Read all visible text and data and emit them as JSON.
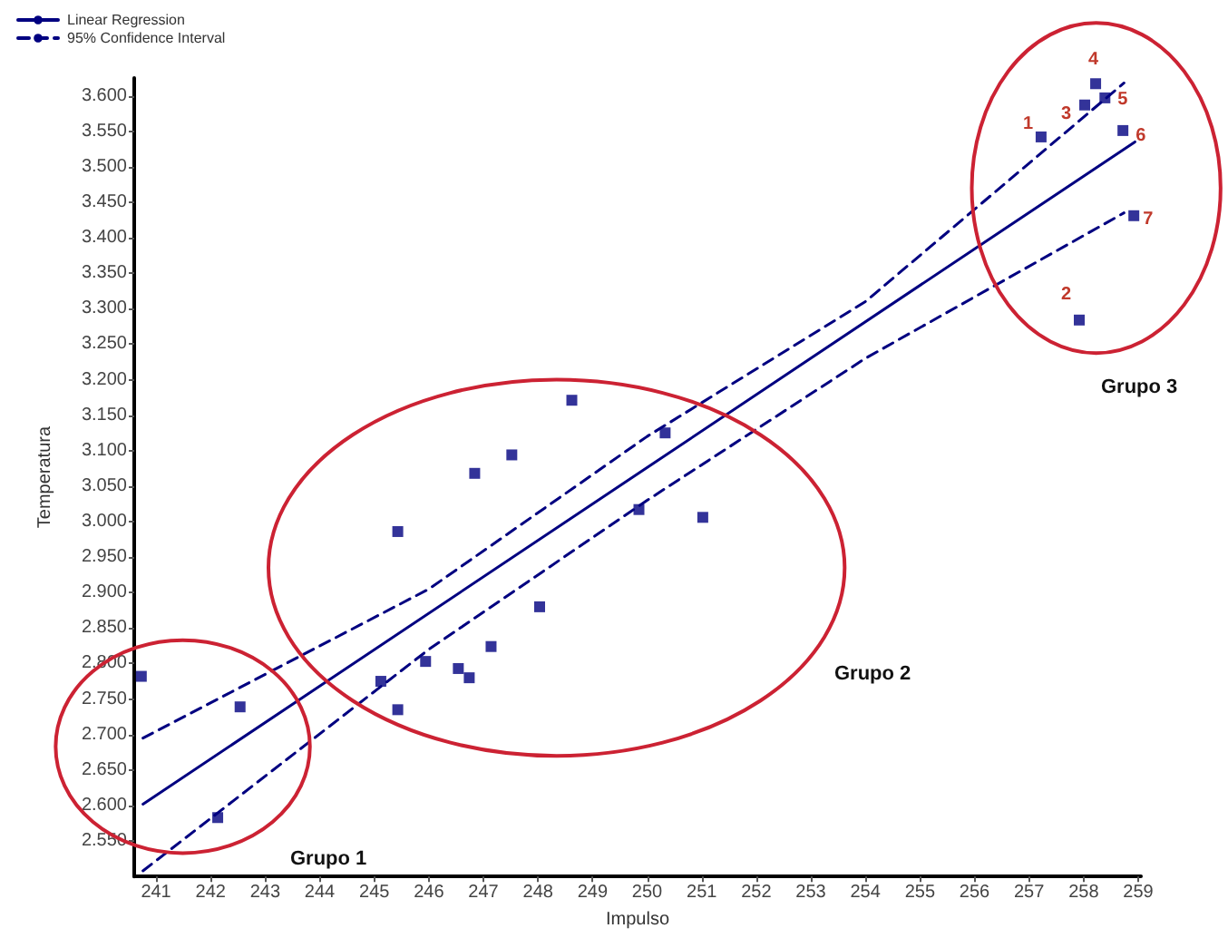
{
  "chart_data": {
    "type": "scatter",
    "xlabel": "Impulso",
    "ylabel": "Temperatura",
    "marker": "square",
    "grid": false,
    "legend": "top left",
    "xlim": [
      240.6,
      259.05
    ],
    "xticks": [
      241,
      242,
      243,
      244,
      245,
      246,
      247,
      248,
      249,
      250,
      251,
      252,
      253,
      254,
      255,
      256,
      257,
      258,
      259
    ],
    "ylim": [
      2.5,
      3.625
    ],
    "yticks": [
      {
        "value": 2.55,
        "label": "2.550"
      },
      {
        "value": 2.6,
        "label": "2.600"
      },
      {
        "value": 2.65,
        "label": "2.650"
      },
      {
        "value": 2.7,
        "label": "2.700"
      },
      {
        "value": 2.75,
        "label": "2.750"
      },
      {
        "value": 2.8,
        "label": "2.800"
      },
      {
        "value": 2.85,
        "label": "2.850"
      },
      {
        "value": 2.9,
        "label": "2.900"
      },
      {
        "value": 2.95,
        "label": "2.950"
      },
      {
        "value": 3.0,
        "label": "3.000"
      },
      {
        "value": 3.05,
        "label": "3.050"
      },
      {
        "value": 3.1,
        "label": "3.100"
      },
      {
        "value": 3.15,
        "label": "3.150"
      },
      {
        "value": 3.2,
        "label": "3.200"
      },
      {
        "value": 3.25,
        "label": "3.250"
      },
      {
        "value": 3.3,
        "label": "3.300"
      },
      {
        "value": 3.35,
        "label": "3.350"
      },
      {
        "value": 3.4,
        "label": "3.400"
      },
      {
        "value": 3.45,
        "label": "3.450"
      },
      {
        "value": 3.5,
        "label": "3.500"
      },
      {
        "value": 3.55,
        "label": "3.550"
      },
      {
        "value": 3.6,
        "label": "3.600"
      }
    ],
    "series": [
      {
        "color": "#000080",
        "x": [
          240.73,
          242.54,
          242.13,
          245.12,
          245.43,
          245.43,
          245.94,
          246.54,
          246.74,
          246.84,
          247.14,
          248.03,
          247.52,
          248.62,
          249.85,
          251.02,
          250.33,
          257.22,
          258.02,
          258.22,
          258.39,
          258.72,
          258.92,
          257.92
        ],
        "values": [
          2.782,
          2.739,
          2.583,
          2.775,
          2.735,
          2.986,
          2.803,
          2.793,
          2.78,
          3.068,
          2.824,
          2.88,
          3.094,
          3.171,
          3.017,
          3.006,
          3.125,
          3.542,
          3.587,
          3.617,
          3.597,
          3.551,
          3.431,
          3.284
        ]
      },
      {
        "type": "line",
        "name": "Linear Regression",
        "color": "#000080",
        "marker": "none",
        "line_style": "solid",
        "x": [
          240.76,
          258.94
        ],
        "values": [
          2.602,
          3.535
        ]
      },
      {
        "type": "line",
        "name": "95% Confidence Interval",
        "color": "#000080",
        "marker": "none",
        "line_style": "dashed",
        "x": [
          240.76,
          246,
          250,
          254,
          258.74
        ],
        "values": [
          2.695,
          2.905,
          3.12,
          3.31,
          3.618
        ]
      },
      {
        "type": "line",
        "color": "#000080",
        "marker": "none",
        "line_style": "dashed",
        "x": [
          240.76,
          246,
          250,
          254,
          258.74
        ],
        "values": [
          2.508,
          2.82,
          3.03,
          3.23,
          3.435
        ]
      }
    ],
    "annotations": [
      "Grupo 1",
      "Grupo 2",
      "Grupo 3",
      {
        "text": "1",
        "x": 257.22,
        "y": 3.542
      },
      {
        "text": "2",
        "x": 257.92,
        "y": 3.284
      },
      {
        "text": "3",
        "x": 258.02,
        "y": 3.587
      },
      {
        "text": "4",
        "x": 258.22,
        "y": 3.617
      },
      {
        "text": "5",
        "x": 258.39,
        "y": 3.597
      },
      {
        "text": "6",
        "x": 258.72,
        "y": 3.551
      },
      {
        "text": "7",
        "x": 258.92,
        "y": 3.431
      }
    ]
  }
}
